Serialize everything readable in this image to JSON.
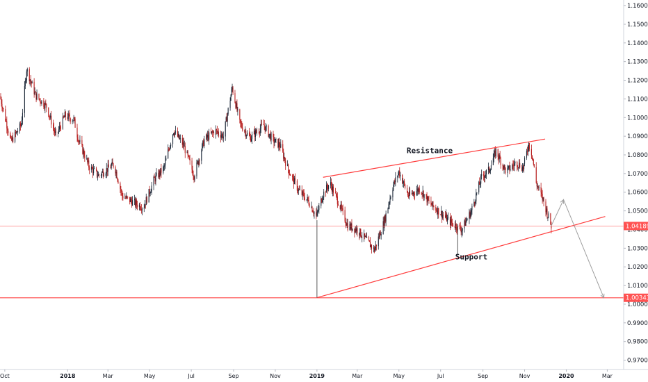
{
  "chart_data": {
    "type": "candlestick",
    "axes": {
      "y": {
        "range": [
          0.965,
          1.163
        ],
        "position": "right",
        "ticks": [
          "1.16000",
          "1.15000",
          "1.14000",
          "1.13000",
          "1.12000",
          "1.11000",
          "1.10000",
          "1.09000",
          "1.08000",
          "1.07000",
          "1.06000",
          "1.05000",
          "1.04000",
          "1.03000",
          "1.02000",
          "1.01000",
          "1.00000",
          "0.99000",
          "0.98000",
          "0.97000"
        ]
      },
      "x": {
        "range": [
          "2017-09-24",
          "2020-03-25"
        ],
        "ticks": [
          {
            "label": "Oct",
            "date": "2017-10-01",
            "bold": false
          },
          {
            "label": "2018",
            "date": "2018-01-01",
            "bold": true
          },
          {
            "label": "Mar",
            "date": "2018-03-01",
            "bold": false
          },
          {
            "label": "May",
            "date": "2018-05-01",
            "bold": false
          },
          {
            "label": "Jul",
            "date": "2018-07-01",
            "bold": false
          },
          {
            "label": "Sep",
            "date": "2018-09-01",
            "bold": false
          },
          {
            "label": "Nov",
            "date": "2018-11-01",
            "bold": false
          },
          {
            "label": "2019",
            "date": "2019-01-01",
            "bold": true
          },
          {
            "label": "Mar",
            "date": "2019-03-01",
            "bold": false
          },
          {
            "label": "May",
            "date": "2019-05-01",
            "bold": false
          },
          {
            "label": "Jul",
            "date": "2019-07-01",
            "bold": false
          },
          {
            "label": "Sep",
            "date": "2019-09-01",
            "bold": false
          },
          {
            "label": "Nov",
            "date": "2019-11-01",
            "bold": false
          },
          {
            "label": "2020",
            "date": "2020-01-01",
            "bold": true
          },
          {
            "label": "Mar",
            "date": "2020-03-01",
            "bold": false
          }
        ]
      }
    },
    "price_path": [
      [
        "2017-09-24",
        1.1115
      ],
      [
        "2017-10-10",
        1.087
      ],
      [
        "2017-10-25",
        1.096
      ],
      [
        "2017-11-02",
        1.126
      ],
      [
        "2017-11-15",
        1.112
      ],
      [
        "2017-12-01",
        1.106
      ],
      [
        "2017-12-15",
        1.09
      ],
      [
        "2017-12-28",
        1.101
      ],
      [
        "2018-01-10",
        1.099
      ],
      [
        "2018-01-17",
        1.088
      ],
      [
        "2018-02-01",
        1.074
      ],
      [
        "2018-02-15",
        1.069
      ],
      [
        "2018-03-10",
        1.075
      ],
      [
        "2018-03-22",
        1.058
      ],
      [
        "2018-04-10",
        1.054
      ],
      [
        "2018-04-22",
        1.052
      ],
      [
        "2018-05-08",
        1.067
      ],
      [
        "2018-05-22",
        1.073
      ],
      [
        "2018-06-05",
        1.093
      ],
      [
        "2018-06-20",
        1.085
      ],
      [
        "2018-07-05",
        1.069
      ],
      [
        "2018-07-20",
        1.088
      ],
      [
        "2018-08-05",
        1.093
      ],
      [
        "2018-08-17",
        1.09
      ],
      [
        "2018-08-30",
        1.116
      ],
      [
        "2018-09-10",
        1.097
      ],
      [
        "2018-09-25",
        1.089
      ],
      [
        "2018-10-15",
        1.096
      ],
      [
        "2018-10-28",
        1.088
      ],
      [
        "2018-11-08",
        1.085
      ],
      [
        "2018-11-20",
        1.072
      ],
      [
        "2018-12-05",
        1.061
      ],
      [
        "2018-12-20",
        1.055
      ],
      [
        "2018-12-31",
        1.047
      ],
      [
        "2019-01-10",
        1.059
      ],
      [
        "2019-01-20",
        1.065
      ],
      [
        "2019-02-01",
        1.055
      ],
      [
        "2019-02-15",
        1.042
      ],
      [
        "2019-03-01",
        1.04
      ],
      [
        "2019-03-15",
        1.034
      ],
      [
        "2019-03-26",
        1.029
      ],
      [
        "2019-04-10",
        1.045
      ],
      [
        "2019-04-22",
        1.063
      ],
      [
        "2019-05-01",
        1.071
      ],
      [
        "2019-05-15",
        1.058
      ],
      [
        "2019-06-01",
        1.062
      ],
      [
        "2019-06-15",
        1.054
      ],
      [
        "2019-07-01",
        1.049
      ],
      [
        "2019-07-15",
        1.044
      ],
      [
        "2019-08-01",
        1.04
      ],
      [
        "2019-08-15",
        1.05
      ],
      [
        "2019-08-30",
        1.068
      ],
      [
        "2019-09-10",
        1.072
      ],
      [
        "2019-09-20",
        1.082
      ],
      [
        "2019-10-05",
        1.071
      ],
      [
        "2019-10-20",
        1.076
      ],
      [
        "2019-10-30",
        1.073
      ],
      [
        "2019-11-07",
        1.086
      ],
      [
        "2019-11-12",
        1.08
      ],
      [
        "2019-11-18",
        1.065
      ],
      [
        "2019-11-28",
        1.056
      ],
      [
        "2019-12-10",
        1.0419
      ]
    ],
    "horizontal_levels": [
      {
        "value": 1.04189,
        "label": "1.04189",
        "color": "#ff5252"
      },
      {
        "value": 1.00343,
        "label": "1.00343",
        "color": "#ff5252"
      }
    ],
    "trendlines": [
      {
        "name": "resistance",
        "from": [
          "2019-01-10",
          1.068
        ],
        "to": [
          "2019-12-01",
          1.0885
        ],
        "color": "#ff3b3b"
      },
      {
        "name": "support",
        "from": [
          "2019-01-01",
          1.0035
        ],
        "to": [
          "2020-02-27",
          1.047
        ],
        "color": "#ff3b3b"
      }
    ],
    "vertical_markers": [
      {
        "date": "2019-01-01",
        "from": 1.0035,
        "to": 1.045
      },
      {
        "date": "2019-07-26",
        "from": 1.026,
        "to": 1.043
      }
    ],
    "projection": [
      [
        "2019-12-10",
        1.042
      ],
      [
        "2019-12-28",
        1.056
      ],
      [
        "2020-02-25",
        1.0034
      ]
    ],
    "annotations": [
      {
        "text": "Resistance",
        "date": "2019-06-15",
        "value": 1.081
      },
      {
        "text": "Support",
        "date": "2019-08-15",
        "value": 1.024
      }
    ],
    "grid": false,
    "legend": "none"
  }
}
